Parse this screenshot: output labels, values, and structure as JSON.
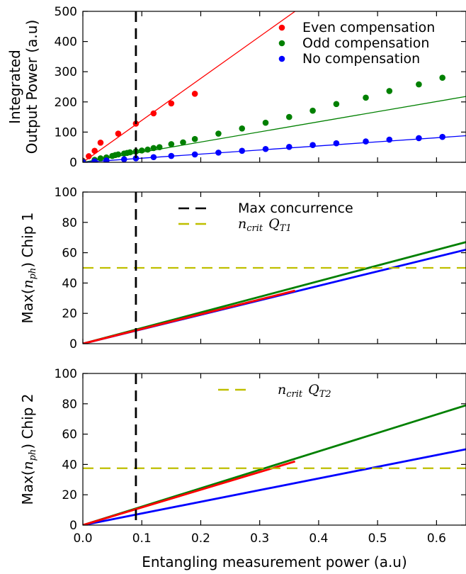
{
  "chart_data": [
    {
      "type": "scatter",
      "panel": "top",
      "ylabel_lines": [
        "Integrated",
        "Output Power (a.u)"
      ],
      "xlim": [
        0,
        0.65
      ],
      "ylim": [
        0,
        500
      ],
      "yticks": [
        0,
        100,
        200,
        300,
        400,
        500
      ],
      "vline": {
        "x": 0.09,
        "style": "dashed",
        "color": "#000000"
      },
      "legend": {
        "placement": "top-right"
      },
      "series": [
        {
          "name": "Even compensation",
          "color": "#ff0000",
          "points": [
            [
              0.0,
              5
            ],
            [
              0.01,
              20
            ],
            [
              0.02,
              38
            ],
            [
              0.03,
              65
            ],
            [
              0.06,
              95
            ],
            [
              0.09,
              128
            ],
            [
              0.12,
              162
            ],
            [
              0.15,
              195
            ],
            [
              0.19,
              227
            ]
          ],
          "fit": [
            [
              0,
              0
            ],
            [
              0.36,
              500
            ]
          ]
        },
        {
          "name": "Odd compensation",
          "color": "#008000",
          "points": [
            [
              0.0,
              3
            ],
            [
              0.02,
              8
            ],
            [
              0.03,
              13
            ],
            [
              0.04,
              16
            ],
            [
              0.05,
              21
            ],
            [
              0.055,
              24
            ],
            [
              0.06,
              26
            ],
            [
              0.07,
              29
            ],
            [
              0.075,
              31
            ],
            [
              0.08,
              33
            ],
            [
              0.09,
              36
            ],
            [
              0.1,
              39
            ],
            [
              0.11,
              42
            ],
            [
              0.12,
              47
            ],
            [
              0.13,
              50
            ],
            [
              0.15,
              60
            ],
            [
              0.17,
              66
            ],
            [
              0.19,
              77
            ],
            [
              0.23,
              95
            ],
            [
              0.27,
              112
            ],
            [
              0.31,
              131
            ],
            [
              0.35,
              150
            ],
            [
              0.39,
              171
            ],
            [
              0.43,
              193
            ],
            [
              0.48,
              214
            ],
            [
              0.52,
              236
            ],
            [
              0.57,
              258
            ],
            [
              0.61,
              280
            ]
          ],
          "fit": [
            [
              0,
              0
            ],
            [
              0.65,
              218
            ]
          ]
        },
        {
          "name": "No compensation",
          "color": "#0000ff",
          "points": [
            [
              0.0,
              1
            ],
            [
              0.02,
              3
            ],
            [
              0.04,
              6
            ],
            [
              0.07,
              10
            ],
            [
              0.09,
              13
            ],
            [
              0.12,
              17
            ],
            [
              0.15,
              21
            ],
            [
              0.19,
              26
            ],
            [
              0.23,
              32
            ],
            [
              0.27,
              38
            ],
            [
              0.31,
              44
            ],
            [
              0.35,
              51
            ],
            [
              0.39,
              57
            ],
            [
              0.43,
              63
            ],
            [
              0.48,
              69
            ],
            [
              0.52,
              75
            ],
            [
              0.57,
              80
            ],
            [
              0.61,
              84
            ]
          ],
          "fit": [
            [
              0,
              0
            ],
            [
              0.65,
              88
            ]
          ]
        }
      ]
    },
    {
      "type": "line",
      "panel": "middle",
      "ylabel_prefix": "Max(",
      "ylabel_var": "n",
      "ylabel_sub": "ph",
      "ylabel_suffix": ") Chip 1",
      "xlim": [
        0,
        0.65
      ],
      "ylim": [
        0,
        100
      ],
      "yticks": [
        0,
        20,
        40,
        60,
        80,
        100
      ],
      "vline": {
        "x": 0.09,
        "style": "dashed",
        "color": "#000000"
      },
      "hline": {
        "y": 50,
        "style": "dashed",
        "color": "#bfbf00"
      },
      "legend": {
        "placement": "top-center",
        "entries": [
          {
            "kind": "vline",
            "color": "#000000",
            "text": "Max concurrence"
          },
          {
            "kind": "hline",
            "color": "#bfbf00",
            "var": "n",
            "var_sub": "crit",
            "q": "Q",
            "q_sub": "T1"
          }
        ]
      },
      "series": [
        {
          "color": "#008000",
          "x": [
            0,
            0.65
          ],
          "y": [
            0,
            67
          ]
        },
        {
          "color": "#0000ff",
          "x": [
            0,
            0.65
          ],
          "y": [
            0,
            62
          ]
        },
        {
          "color": "#ff0000",
          "x": [
            0,
            0.36
          ],
          "y": [
            0,
            35
          ]
        }
      ]
    },
    {
      "type": "line",
      "panel": "bottom",
      "ylabel_prefix": "Max(",
      "ylabel_var": "n",
      "ylabel_sub": "ph",
      "ylabel_suffix": ") Chip 2",
      "xlabel": "Entangling measurement power (a.u)",
      "xlim": [
        0,
        0.65
      ],
      "ylim": [
        0,
        100
      ],
      "xticks": [
        0.0,
        0.1,
        0.2,
        0.3,
        0.4,
        0.5,
        0.6
      ],
      "xtick_labels": [
        "0.0",
        "0.1",
        "0.2",
        "0.3",
        "0.4",
        "0.5",
        "0.6"
      ],
      "yticks": [
        0,
        20,
        40,
        60,
        80,
        100
      ],
      "vline": {
        "x": 0.09,
        "style": "dashed",
        "color": "#000000"
      },
      "hline": {
        "y": 37.5,
        "style": "dashed",
        "color": "#bfbf00"
      },
      "legend": {
        "placement": "top-center",
        "entries": [
          {
            "kind": "hline",
            "color": "#bfbf00",
            "var": "n",
            "var_sub": "crit",
            "q": "Q",
            "q_sub": "T2"
          }
        ]
      },
      "series": [
        {
          "color": "#008000",
          "x": [
            0,
            0.65
          ],
          "y": [
            0,
            79
          ]
        },
        {
          "color": "#0000ff",
          "x": [
            0,
            0.65
          ],
          "y": [
            0,
            50
          ]
        },
        {
          "color": "#ff0000",
          "x": [
            0,
            0.36
          ],
          "y": [
            0,
            42
          ]
        }
      ]
    }
  ]
}
